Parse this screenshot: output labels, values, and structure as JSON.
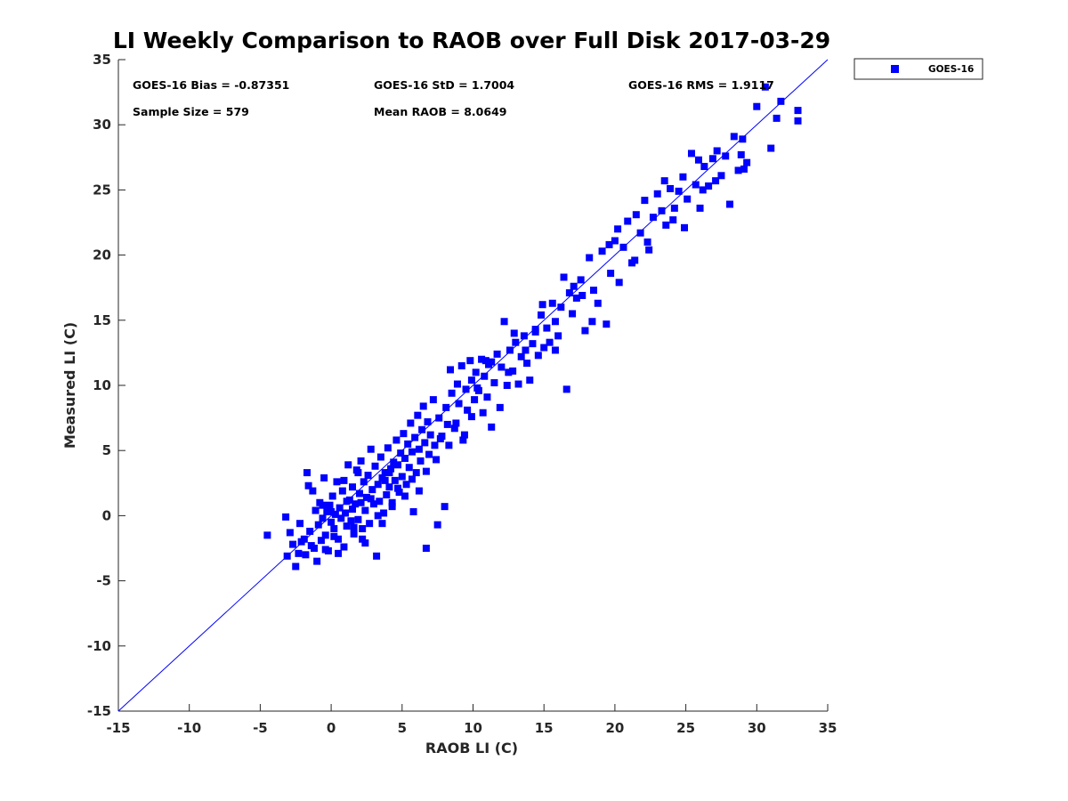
{
  "chart_data": {
    "type": "scatter",
    "title": "LI Weekly Comparison to RAOB over Full Disk 2017-03-29",
    "xlabel": "RAOB LI (C)",
    "ylabel": "Measured LI (C)",
    "xlim": [
      -15,
      35
    ],
    "ylim": [
      -15,
      35
    ],
    "xticks": [
      -15,
      -10,
      -5,
      0,
      5,
      10,
      15,
      20,
      25,
      30,
      35
    ],
    "yticks": [
      -15,
      -10,
      -5,
      0,
      5,
      10,
      15,
      20,
      25,
      30,
      35
    ],
    "legend": {
      "position": "outside-top-right",
      "entries": [
        "GOES-16"
      ]
    },
    "annotations": {
      "bias": "GOES-16 Bias = -0.87351",
      "std": "GOES-16 StD = 1.7004",
      "rms": "GOES-16 RMS = 1.9117",
      "sample_size": "Sample Size = 579",
      "mean_raob": "Mean RAOB = 8.0649"
    },
    "reference_line": {
      "name": "1:1 line",
      "from": [
        -15,
        -15
      ],
      "to": [
        35,
        35
      ]
    },
    "colors": {
      "series": "#0000ff",
      "axis": "#262626"
    },
    "series": [
      {
        "name": "GOES-16",
        "marker": "square",
        "points": [
          [
            -4.5,
            -1.5
          ],
          [
            -3.2,
            -0.1
          ],
          [
            -3.1,
            -3.1
          ],
          [
            -2.9,
            -1.3
          ],
          [
            -2.7,
            -2.2
          ],
          [
            -2.5,
            -3.9
          ],
          [
            -2.3,
            -2.9
          ],
          [
            -2.1,
            -2.0
          ],
          [
            -2.2,
            -0.6
          ],
          [
            -1.9,
            -1.8
          ],
          [
            -1.8,
            -3.0
          ],
          [
            -1.7,
            3.3
          ],
          [
            -1.6,
            2.3
          ],
          [
            -1.5,
            -1.2
          ],
          [
            -1.3,
            1.9
          ],
          [
            -1.2,
            -2.5
          ],
          [
            -1.1,
            0.4
          ],
          [
            -1.0,
            -3.5
          ],
          [
            -0.9,
            -0.7
          ],
          [
            -0.8,
            1.0
          ],
          [
            -0.7,
            -1.9
          ],
          [
            -0.6,
            -0.2
          ],
          [
            -0.5,
            2.9
          ],
          [
            -0.4,
            -1.5
          ],
          [
            -0.3,
            0.3
          ],
          [
            -0.2,
            -2.7
          ],
          [
            -0.1,
            0.8
          ],
          [
            0.0,
            -0.5
          ],
          [
            0.1,
            1.5
          ],
          [
            0.2,
            -1.0
          ],
          [
            0.3,
            0.1
          ],
          [
            0.4,
            2.6
          ],
          [
            0.5,
            -1.8
          ],
          [
            0.6,
            0.6
          ],
          [
            0.7,
            -0.2
          ],
          [
            0.8,
            1.9
          ],
          [
            0.9,
            -2.4
          ],
          [
            1.0,
            0.2
          ],
          [
            1.1,
            -0.8
          ],
          [
            1.2,
            3.9
          ],
          [
            1.3,
            1.2
          ],
          [
            1.4,
            -0.4
          ],
          [
            1.5,
            2.2
          ],
          [
            1.6,
            -1.4
          ],
          [
            1.7,
            0.9
          ],
          [
            1.8,
            3.5
          ],
          [
            1.9,
            -0.3
          ],
          [
            2.0,
            1.7
          ],
          [
            2.1,
            4.2
          ],
          [
            2.2,
            -1.8
          ],
          [
            2.3,
            2.6
          ],
          [
            2.4,
            0.4
          ],
          [
            2.5,
            1.4
          ],
          [
            2.6,
            3.1
          ],
          [
            2.7,
            -0.6
          ],
          [
            2.8,
            5.1
          ],
          [
            2.9,
            2.0
          ],
          [
            3.0,
            0.9
          ],
          [
            3.1,
            3.8
          ],
          [
            3.2,
            -3.1
          ],
          [
            3.3,
            2.4
          ],
          [
            3.4,
            1.1
          ],
          [
            3.5,
            4.5
          ],
          [
            3.6,
            2.9
          ],
          [
            3.7,
            0.2
          ],
          [
            3.8,
            3.3
          ],
          [
            3.9,
            1.6
          ],
          [
            4.0,
            5.2
          ],
          [
            4.1,
            2.2
          ],
          [
            4.2,
            3.6
          ],
          [
            4.3,
            1.0
          ],
          [
            4.4,
            4.1
          ],
          [
            4.5,
            2.7
          ],
          [
            4.6,
            5.8
          ],
          [
            4.7,
            3.9
          ],
          [
            4.8,
            1.8
          ],
          [
            4.9,
            4.8
          ],
          [
            5.0,
            3.0
          ],
          [
            5.1,
            6.3
          ],
          [
            5.2,
            4.4
          ],
          [
            5.3,
            2.4
          ],
          [
            5.4,
            5.5
          ],
          [
            5.5,
            3.7
          ],
          [
            5.6,
            7.1
          ],
          [
            5.7,
            4.9
          ],
          [
            5.8,
            0.3
          ],
          [
            5.9,
            6.0
          ],
          [
            6.0,
            3.3
          ],
          [
            6.1,
            7.7
          ],
          [
            6.2,
            5.1
          ],
          [
            6.3,
            4.2
          ],
          [
            6.4,
            6.6
          ],
          [
            6.5,
            8.4
          ],
          [
            6.6,
            5.6
          ],
          [
            6.7,
            -2.5
          ],
          [
            6.8,
            7.2
          ],
          [
            6.9,
            4.7
          ],
          [
            7.0,
            6.2
          ],
          [
            7.2,
            8.9
          ],
          [
            7.3,
            5.4
          ],
          [
            7.5,
            -0.7
          ],
          [
            7.6,
            7.5
          ],
          [
            7.8,
            6.1
          ],
          [
            8.0,
            0.7
          ],
          [
            8.1,
            8.3
          ],
          [
            8.2,
            7.0
          ],
          [
            8.4,
            11.2
          ],
          [
            8.5,
            9.4
          ],
          [
            8.7,
            6.7
          ],
          [
            8.9,
            10.1
          ],
          [
            9.0,
            8.6
          ],
          [
            9.2,
            11.5
          ],
          [
            9.3,
            5.8
          ],
          [
            9.5,
            9.7
          ],
          [
            9.6,
            8.1
          ],
          [
            9.8,
            11.9
          ],
          [
            9.9,
            10.4
          ],
          [
            10.1,
            8.9
          ],
          [
            10.2,
            11.0
          ],
          [
            10.4,
            9.6
          ],
          [
            10.6,
            12.0
          ],
          [
            10.8,
            10.7
          ],
          [
            11.0,
            9.1
          ],
          [
            11.1,
            11.6
          ],
          [
            11.3,
            6.8
          ],
          [
            11.5,
            10.2
          ],
          [
            11.7,
            12.4
          ],
          [
            11.9,
            8.3
          ],
          [
            12.0,
            11.4
          ],
          [
            12.2,
            14.9
          ],
          [
            12.4,
            10.0
          ],
          [
            12.6,
            12.7
          ],
          [
            12.8,
            11.1
          ],
          [
            13.0,
            13.3
          ],
          [
            13.2,
            10.1
          ],
          [
            13.4,
            12.2
          ],
          [
            13.6,
            13.8
          ],
          [
            13.8,
            11.7
          ],
          [
            14.0,
            10.4
          ],
          [
            14.2,
            13.2
          ],
          [
            14.4,
            14.1
          ],
          [
            14.6,
            12.3
          ],
          [
            14.8,
            15.4
          ],
          [
            15.0,
            12.9
          ],
          [
            15.2,
            14.4
          ],
          [
            15.4,
            13.3
          ],
          [
            15.6,
            16.3
          ],
          [
            15.8,
            14.9
          ],
          [
            16.0,
            13.8
          ],
          [
            16.2,
            16.0
          ],
          [
            16.4,
            18.3
          ],
          [
            16.6,
            9.7
          ],
          [
            16.8,
            17.1
          ],
          [
            17.0,
            15.5
          ],
          [
            17.3,
            16.7
          ],
          [
            17.6,
            18.1
          ],
          [
            17.9,
            14.2
          ],
          [
            18.2,
            19.8
          ],
          [
            18.5,
            17.3
          ],
          [
            18.8,
            16.3
          ],
          [
            19.1,
            20.3
          ],
          [
            19.4,
            14.7
          ],
          [
            19.7,
            18.6
          ],
          [
            20.0,
            21.1
          ],
          [
            20.3,
            17.9
          ],
          [
            20.6,
            20.6
          ],
          [
            20.9,
            22.6
          ],
          [
            21.2,
            19.4
          ],
          [
            21.5,
            23.1
          ],
          [
            21.8,
            21.7
          ],
          [
            22.1,
            24.2
          ],
          [
            22.4,
            20.4
          ],
          [
            22.7,
            22.9
          ],
          [
            23.0,
            24.7
          ],
          [
            23.3,
            23.4
          ],
          [
            23.6,
            22.3
          ],
          [
            23.9,
            25.1
          ],
          [
            24.2,
            23.6
          ],
          [
            24.5,
            24.9
          ],
          [
            24.8,
            26.0
          ],
          [
            25.1,
            24.3
          ],
          [
            25.4,
            27.8
          ],
          [
            25.7,
            25.4
          ],
          [
            26.0,
            23.6
          ],
          [
            26.3,
            26.8
          ],
          [
            26.6,
            25.3
          ],
          [
            26.9,
            27.4
          ],
          [
            27.2,
            28.0
          ],
          [
            27.5,
            26.1
          ],
          [
            27.8,
            27.6
          ],
          [
            28.1,
            23.9
          ],
          [
            28.4,
            29.1
          ],
          [
            28.7,
            26.5
          ],
          [
            29.0,
            28.9
          ],
          [
            29.3,
            27.1
          ],
          [
            30.0,
            31.4
          ],
          [
            30.6,
            32.9
          ],
          [
            31.0,
            28.2
          ],
          [
            31.4,
            30.5
          ],
          [
            31.7,
            31.8
          ],
          [
            32.9,
            31.1
          ],
          [
            32.9,
            30.3
          ],
          [
            0.5,
            -2.9
          ],
          [
            0.9,
            2.7
          ],
          [
            1.5,
            0.5
          ],
          [
            1.9,
            3.3
          ],
          [
            2.2,
            -1.0
          ],
          [
            2.8,
            1.3
          ],
          [
            3.3,
            0.0
          ],
          [
            3.8,
            2.7
          ],
          [
            4.3,
            0.7
          ],
          [
            4.7,
            2.1
          ],
          [
            5.2,
            1.5
          ],
          [
            5.7,
            2.8
          ],
          [
            6.2,
            1.9
          ],
          [
            2.4,
            -2.1
          ],
          [
            1.6,
            -0.9
          ],
          [
            0.2,
            -1.6
          ],
          [
            -0.4,
            -2.6
          ],
          [
            -1.4,
            -2.3
          ],
          [
            -0.6,
            0.8
          ],
          [
            3.6,
            -0.6
          ],
          [
            4.1,
            3.3
          ],
          [
            2.1,
            1.0
          ],
          [
            1.1,
            1.1
          ],
          [
            0.0,
            0.3
          ],
          [
            8.8,
            7.1
          ],
          [
            9.9,
            7.6
          ],
          [
            10.3,
            9.8
          ],
          [
            11.3,
            11.8
          ],
          [
            12.5,
            11.0
          ],
          [
            7.4,
            4.3
          ],
          [
            8.3,
            5.4
          ],
          [
            9.4,
            6.2
          ],
          [
            10.7,
            7.9
          ],
          [
            6.7,
            3.4
          ],
          [
            7.7,
            5.9
          ],
          [
            10.9,
            11.9
          ],
          [
            13.7,
            12.7
          ],
          [
            14.4,
            14.3
          ],
          [
            15.8,
            12.7
          ],
          [
            17.7,
            16.9
          ],
          [
            18.4,
            14.9
          ],
          [
            21.4,
            19.6
          ],
          [
            23.5,
            25.7
          ],
          [
            24.9,
            22.1
          ],
          [
            26.2,
            25.0
          ],
          [
            27.1,
            25.7
          ],
          [
            28.9,
            27.7
          ],
          [
            29.1,
            26.6
          ],
          [
            19.6,
            20.8
          ],
          [
            22.3,
            21.0
          ],
          [
            17.1,
            17.6
          ],
          [
            14.9,
            16.2
          ],
          [
            12.9,
            14.0
          ],
          [
            20.2,
            22.0
          ],
          [
            25.9,
            27.3
          ],
          [
            24.1,
            22.7
          ]
        ]
      }
    ]
  }
}
